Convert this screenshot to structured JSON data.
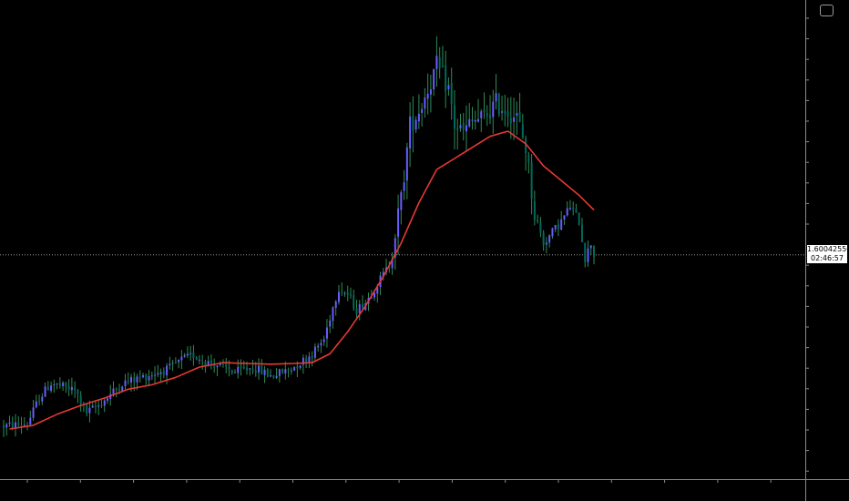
{
  "chart_data": {
    "type": "candlestick",
    "title": "",
    "xlabel": "",
    "ylabel": "",
    "ylim": [
      1.57,
      1.635
    ],
    "grid": false,
    "bars": 200,
    "current_price": "1.60042550",
    "countdown": "02:46:57",
    "colors": {
      "background": "#000000",
      "bull_wick": "#2e8b57",
      "bull_body": "#6a5cff",
      "bear_wick": "#2e8b57",
      "bear_body": "#00695c",
      "moving_average": "#e53935",
      "axis": "#8a8a8a",
      "price_line": "#b0b0b0"
    },
    "price_path": [
      [
        0,
        1.5772
      ],
      [
        8,
        1.5775
      ],
      [
        12,
        1.581
      ],
      [
        16,
        1.583
      ],
      [
        20,
        1.5825
      ],
      [
        24,
        1.582
      ],
      [
        28,
        1.579
      ],
      [
        32,
        1.58
      ],
      [
        40,
        1.583
      ],
      [
        48,
        1.584
      ],
      [
        56,
        1.585
      ],
      [
        60,
        1.5862
      ],
      [
        64,
        1.5868
      ],
      [
        68,
        1.586
      ],
      [
        72,
        1.5855
      ],
      [
        78,
        1.5845
      ],
      [
        84,
        1.5852
      ],
      [
        90,
        1.584
      ],
      [
        96,
        1.5848
      ],
      [
        100,
        1.5858
      ],
      [
        104,
        1.587
      ],
      [
        108,
        1.589
      ],
      [
        110,
        1.592
      ],
      [
        113,
        1.596
      ],
      [
        116,
        1.595
      ],
      [
        119,
        1.593
      ],
      [
        122,
        1.594
      ],
      [
        126,
        1.5965
      ],
      [
        130,
        1.599
      ],
      [
        134,
        1.608
      ],
      [
        137,
        1.618
      ],
      [
        140,
        1.62
      ],
      [
        143,
        1.623
      ],
      [
        146,
        1.626
      ],
      [
        150,
        1.623
      ],
      [
        152,
        1.618
      ],
      [
        155,
        1.617
      ],
      [
        158,
        1.6185
      ],
      [
        162,
        1.619
      ],
      [
        166,
        1.621
      ],
      [
        170,
        1.62
      ],
      [
        173,
        1.619
      ],
      [
        176,
        1.615
      ],
      [
        179,
        1.606
      ],
      [
        182,
        1.602
      ],
      [
        185,
        1.6035
      ],
      [
        188,
        1.605
      ],
      [
        191,
        1.607
      ],
      [
        194,
        1.605
      ],
      [
        196,
        1.6
      ],
      [
        198,
        1.602
      ],
      [
        199,
        1.6004
      ]
    ],
    "moving_average": [
      [
        2,
        1.5768
      ],
      [
        10,
        1.5773
      ],
      [
        18,
        1.5788
      ],
      [
        26,
        1.58
      ],
      [
        34,
        1.581
      ],
      [
        42,
        1.5822
      ],
      [
        50,
        1.5828
      ],
      [
        58,
        1.5838
      ],
      [
        66,
        1.5852
      ],
      [
        74,
        1.5858
      ],
      [
        82,
        1.5857
      ],
      [
        90,
        1.5856
      ],
      [
        98,
        1.5857
      ],
      [
        104,
        1.5858
      ],
      [
        110,
        1.587
      ],
      [
        116,
        1.59
      ],
      [
        122,
        1.5935
      ],
      [
        128,
        1.5975
      ],
      [
        134,
        1.602
      ],
      [
        140,
        1.6075
      ],
      [
        146,
        1.612
      ],
      [
        152,
        1.6135
      ],
      [
        158,
        1.615
      ],
      [
        164,
        1.6165
      ],
      [
        170,
        1.6172
      ],
      [
        176,
        1.6155
      ],
      [
        182,
        1.6125
      ],
      [
        188,
        1.6105
      ],
      [
        194,
        1.6085
      ],
      [
        199,
        1.6065
      ]
    ]
  }
}
